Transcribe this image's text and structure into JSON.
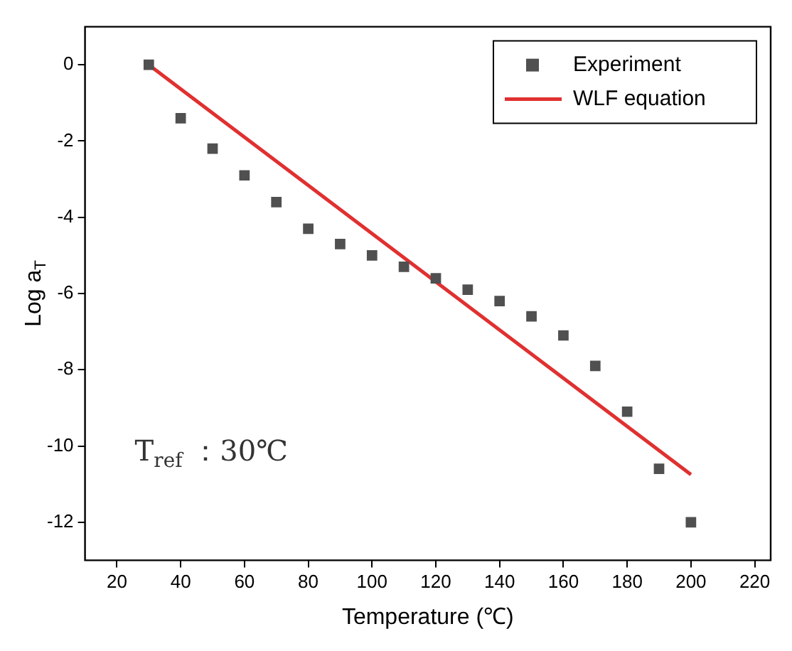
{
  "chart_data": {
    "type": "scatter",
    "xlabel": "Temperature (℃)",
    "ylabel": "Log a$_{T}$",
    "annotations": [
      "T$_{ref}$ ：30℃"
    ],
    "xlim": [
      10,
      225
    ],
    "xticks": [
      20,
      40,
      60,
      80,
      100,
      120,
      140,
      160,
      180,
      200,
      220
    ],
    "ylim": [
      -13,
      1
    ],
    "yticks": [
      0,
      -2,
      -4,
      -6,
      -8,
      -10,
      -12
    ],
    "grid": false,
    "legend": "top right",
    "marker": "square",
    "series": [
      {
        "name": "Experiment",
        "color": "#505050",
        "x": [
          30,
          40,
          50,
          60,
          70,
          80,
          90,
          100,
          110,
          120,
          130,
          140,
          150,
          160,
          170,
          180,
          190,
          200
        ],
        "values": [
          0,
          -1.4,
          -2.2,
          -2.9,
          -3.6,
          -4.3,
          -4.7,
          -5.0,
          -5.3,
          -5.6,
          -5.9,
          -6.2,
          -6.6,
          -7.1,
          -7.9,
          -9.1,
          -10.6,
          -12.0
        ]
      },
      {
        "name": "WLF equation",
        "type": "line",
        "color": "#e03030",
        "x": [
          30,
          200
        ],
        "values": [
          0,
          -10.75
        ],
        "line_style": "solid",
        "marker": "none"
      }
    ]
  }
}
